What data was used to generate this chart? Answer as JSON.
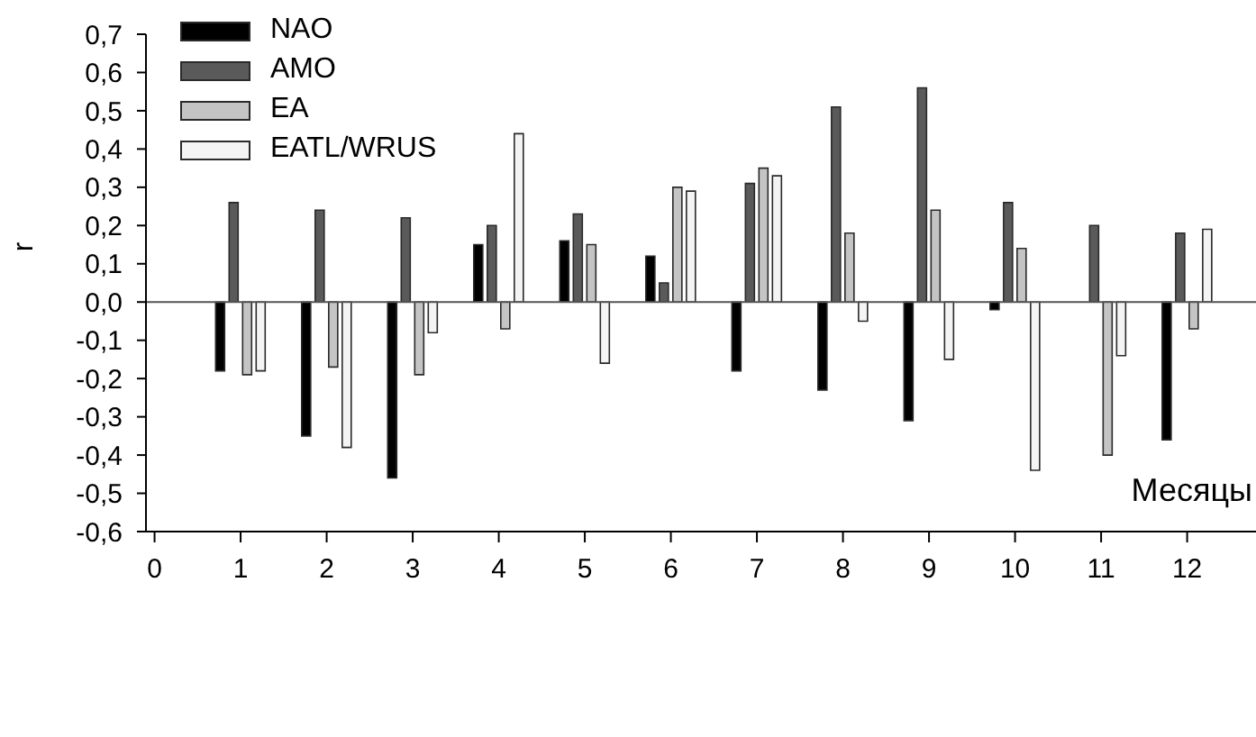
{
  "chart_data": {
    "type": "bar",
    "xlabel": "Месяцы",
    "ylabel": "r",
    "x": [
      1,
      2,
      3,
      4,
      5,
      6,
      7,
      8,
      9,
      10,
      11,
      12
    ],
    "series": [
      {
        "name": "NAO",
        "color": "#000000",
        "values": [
          -0.18,
          -0.35,
          -0.46,
          0.15,
          0.16,
          0.12,
          -0.18,
          -0.23,
          -0.31,
          -0.02,
          null,
          -0.36
        ]
      },
      {
        "name": "AMO",
        "color": "#5a5a5a",
        "values": [
          0.26,
          0.24,
          0.22,
          0.2,
          0.23,
          0.05,
          0.31,
          0.51,
          0.56,
          0.26,
          0.2,
          0.18
        ]
      },
      {
        "name": "EA",
        "color": "#c4c4c4",
        "values": [
          -0.19,
          -0.17,
          -0.19,
          -0.07,
          0.15,
          0.3,
          0.35,
          0.18,
          0.24,
          0.14,
          -0.4,
          -0.07
        ]
      },
      {
        "name": "EATL/WRUS",
        "color": "#f4f4f4",
        "values": [
          -0.18,
          -0.38,
          -0.08,
          0.44,
          -0.16,
          0.29,
          0.33,
          -0.05,
          -0.15,
          -0.44,
          -0.14,
          0.19
        ]
      }
    ],
    "xlim": [
      -0.1,
      12.8
    ],
    "xticks": [
      0,
      1,
      2,
      3,
      4,
      5,
      6,
      7,
      8,
      9,
      10,
      11,
      12
    ],
    "ylim": [
      -0.6,
      0.7
    ],
    "yticks": [
      {
        "value": -0.6,
        "label": "-0,6"
      },
      {
        "value": -0.5,
        "label": "-0,5"
      },
      {
        "value": -0.4,
        "label": "-0,4"
      },
      {
        "value": -0.3,
        "label": "-0,3"
      },
      {
        "value": -0.2,
        "label": "-0,2"
      },
      {
        "value": -0.1,
        "label": "-0,1"
      },
      {
        "value": 0,
        "label": "0,0"
      },
      {
        "value": 0.1,
        "label": "0,1"
      },
      {
        "value": 0.2,
        "label": "0,2"
      },
      {
        "value": 0.3,
        "label": "0,3"
      },
      {
        "value": 0.4,
        "label": "0,4"
      },
      {
        "value": 0.5,
        "label": "0,5"
      },
      {
        "value": 0.6,
        "label": "0,6"
      },
      {
        "value": 0.7,
        "label": "0,7"
      }
    ],
    "ref_lines": [
      {
        "axis": "y",
        "value": 0,
        "color": "#555555"
      }
    ],
    "legend": "top left"
  }
}
